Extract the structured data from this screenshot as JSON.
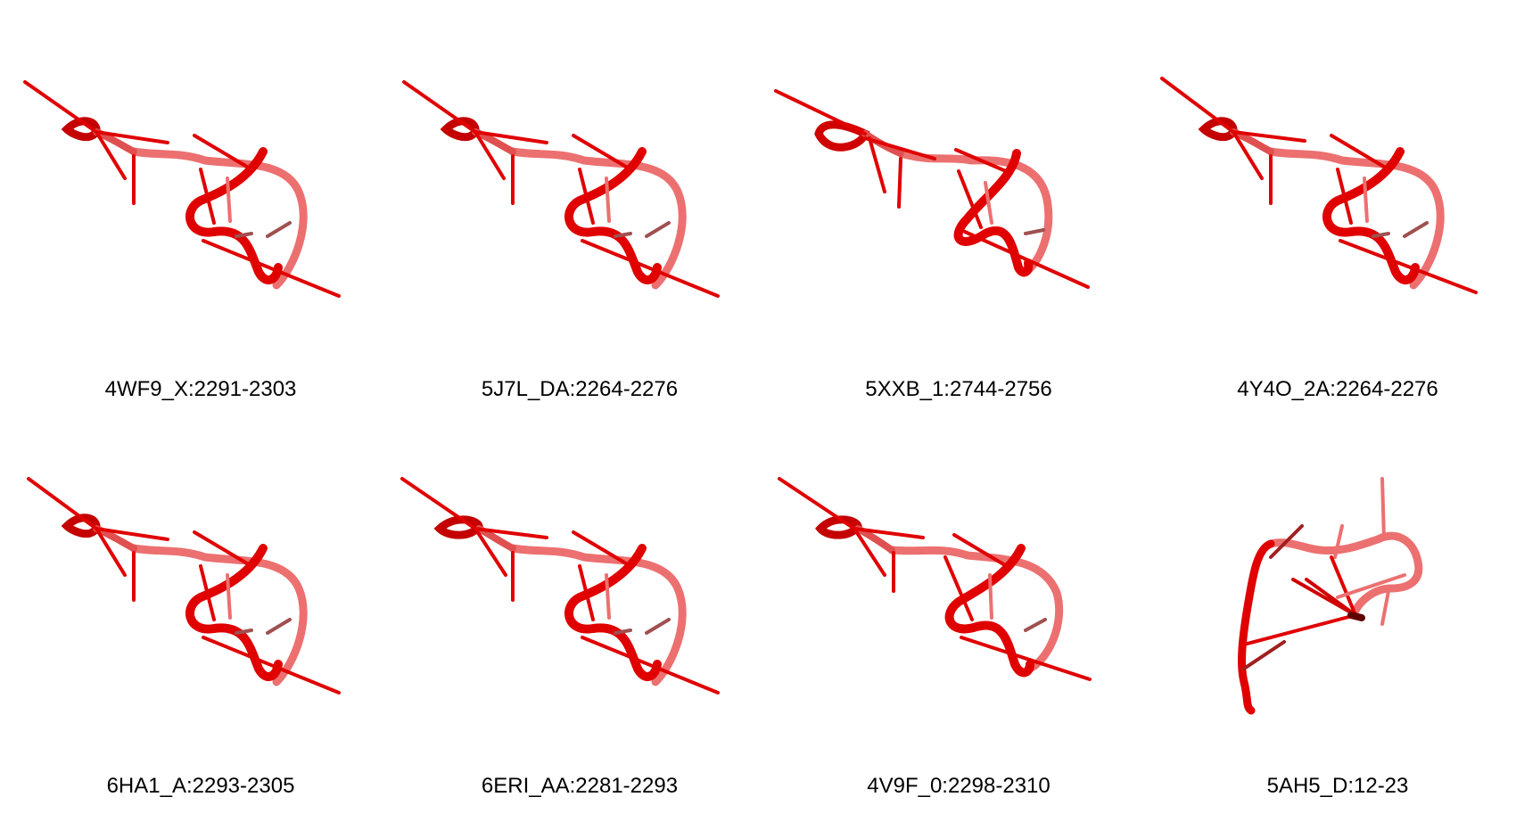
{
  "figure": {
    "panels": [
      {
        "label": "4WF9_X:2291-2303",
        "structure": "hairpin-loop-motif",
        "color": "#e00000"
      },
      {
        "label": "5J7L_DA:2264-2276",
        "structure": "hairpin-loop-motif",
        "color": "#e00000"
      },
      {
        "label": "5XXB_1:2744-2756",
        "structure": "hairpin-loop-motif",
        "color": "#e00000"
      },
      {
        "label": "4Y4O_2A:2264-2276",
        "structure": "hairpin-loop-motif",
        "color": "#e00000"
      },
      {
        "label": "6HA1_A:2293-2305",
        "structure": "hairpin-loop-motif",
        "color": "#e00000"
      },
      {
        "label": "6ERI_AA:2281-2293",
        "structure": "hairpin-loop-motif",
        "color": "#e00000"
      },
      {
        "label": "4V9F_0:2298-2310",
        "structure": "hairpin-loop-motif",
        "color": "#e00000"
      },
      {
        "label": "5AH5_D:12-23",
        "structure": "alternate-loop-motif",
        "color": "#e00000"
      }
    ]
  }
}
